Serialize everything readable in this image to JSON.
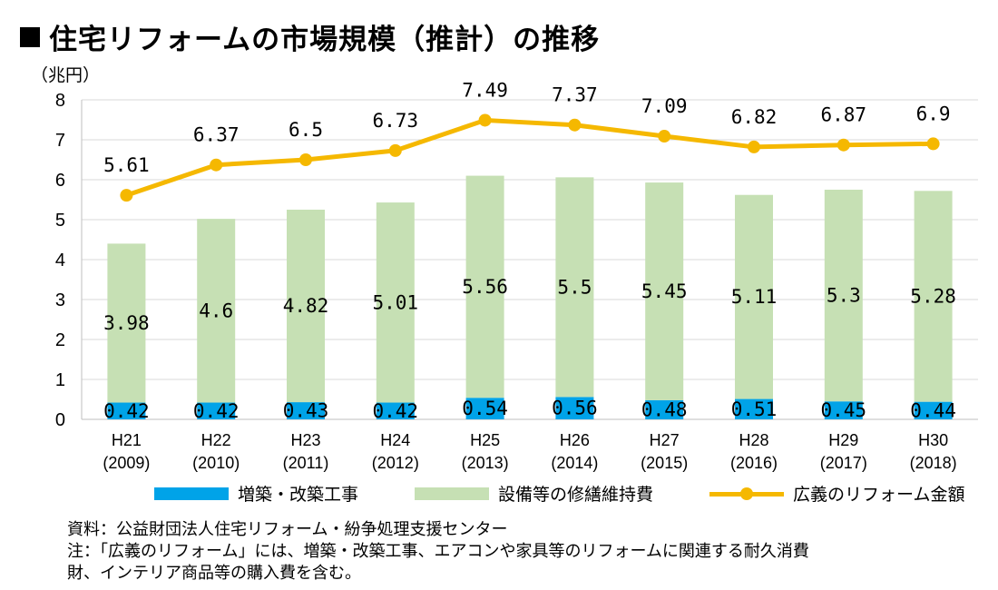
{
  "title": "住宅リフォームの市場規模（推計）の推移",
  "unit_label": "（兆円）",
  "chart_data": {
    "type": "bar",
    "stacked": true,
    "categories": [
      "H21",
      "H22",
      "H23",
      "H24",
      "H25",
      "H26",
      "H27",
      "H28",
      "H29",
      "H30"
    ],
    "category_years": [
      "(2009)",
      "(2010)",
      "(2011)",
      "(2012)",
      "(2013)",
      "(2014)",
      "(2015)",
      "(2016)",
      "(2017)",
      "(2018)"
    ],
    "ylim": [
      0,
      8
    ],
    "yticks": [
      0,
      1,
      2,
      3,
      4,
      5,
      6,
      7,
      8
    ],
    "series": [
      {
        "name": "増築・改築工事",
        "type": "bar",
        "color": "#00A3E8",
        "values": [
          0.42,
          0.42,
          0.43,
          0.42,
          0.54,
          0.56,
          0.48,
          0.51,
          0.45,
          0.44
        ],
        "labels": [
          "0.42",
          "0.42",
          "0.43",
          "0.42",
          "0.54",
          "0.56",
          "0.48",
          "0.51",
          "0.45",
          "0.44"
        ]
      },
      {
        "name": "設備等の修繕維持費",
        "type": "bar",
        "color": "#C6E0B4",
        "values": [
          3.98,
          4.6,
          4.82,
          5.01,
          5.56,
          5.5,
          5.45,
          5.11,
          5.3,
          5.28
        ],
        "labels": [
          "3.98",
          "4.6",
          "4.82",
          "5.01",
          "5.56",
          "5.5",
          "5.45",
          "5.11",
          "5.3",
          "5.28"
        ]
      },
      {
        "name": "広義のリフォーム金額",
        "type": "line",
        "color": "#F5B800",
        "values": [
          5.61,
          6.37,
          6.5,
          6.73,
          7.49,
          7.37,
          7.09,
          6.82,
          6.87,
          6.9
        ],
        "labels": [
          "5.61",
          "6.37",
          "6.5",
          "6.73",
          "7.49",
          "7.37",
          "7.09",
          "6.82",
          "6.87",
          "6.9"
        ]
      }
    ],
    "grid": true,
    "legend_position": "bottom"
  },
  "notes": [
    "資料：公益財団法人住宅リフォーム・紛争処理支援センター",
    "注：「広義のリフォーム」には、増築・改築工事、エアコンや家具等のリフォームに関連する耐久消費",
    "財、インテリア商品等の購入費を含む。"
  ]
}
